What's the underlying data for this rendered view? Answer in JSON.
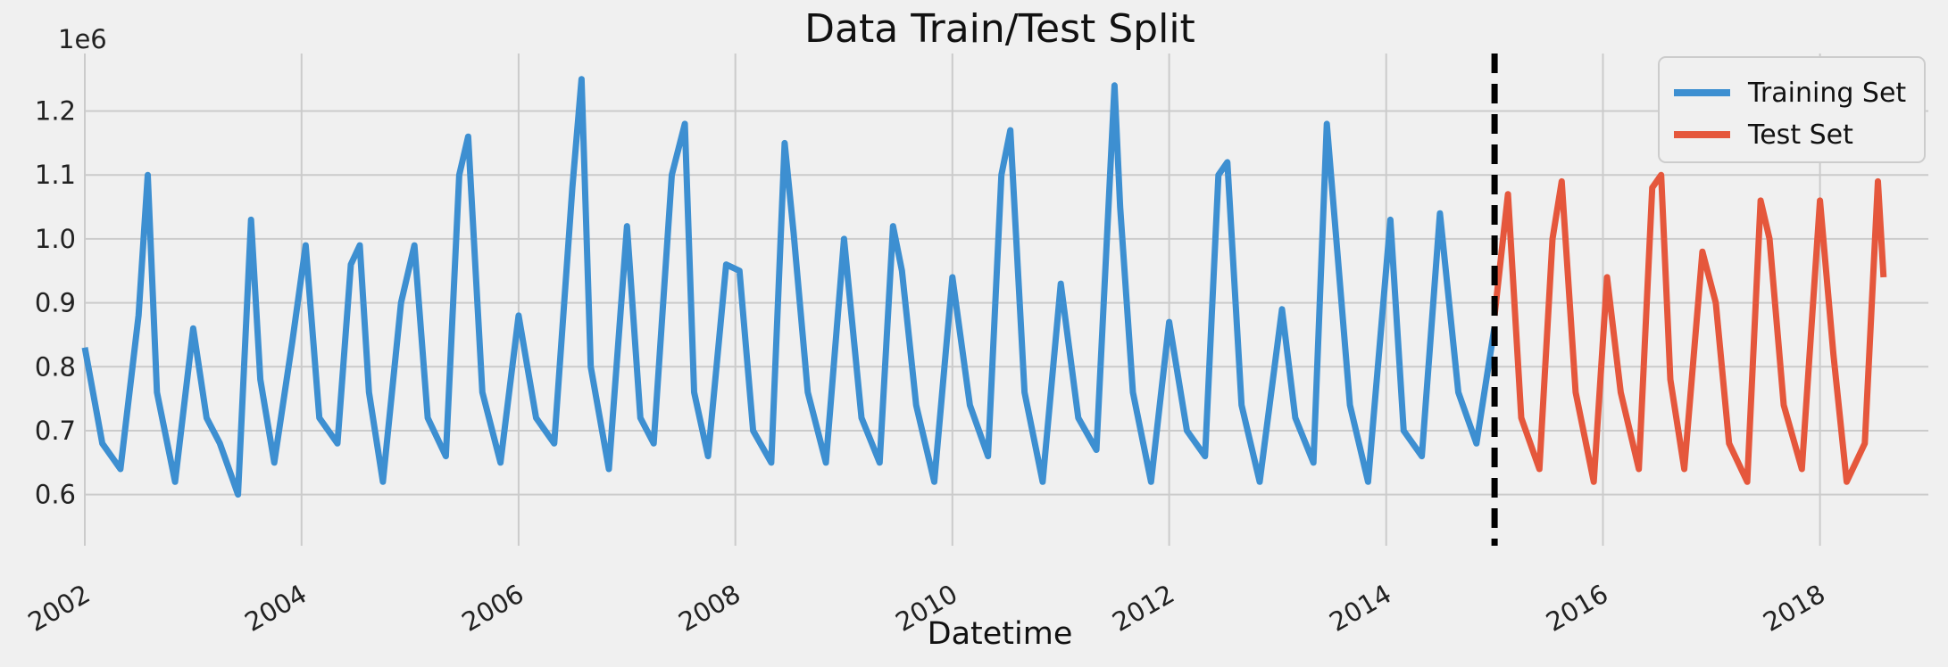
{
  "chart_data": {
    "type": "line",
    "title": "Data Train/Test Split",
    "xlabel": "Datetime",
    "ylabel": "",
    "y_multiplier": "1e6",
    "xlim": [
      "2002-01-01",
      "2019-01-01"
    ],
    "ylim": [
      520000,
      1290000
    ],
    "x_ticks": [
      "2002",
      "2004",
      "2006",
      "2008",
      "2010",
      "2012",
      "2014",
      "2016",
      "2018"
    ],
    "y_ticks": [
      {
        "value": 600000,
        "label": "0.6"
      },
      {
        "value": 700000,
        "label": "0.7"
      },
      {
        "value": 800000,
        "label": "0.8"
      },
      {
        "value": 900000,
        "label": "0.9"
      },
      {
        "value": 1000000,
        "label": "1.0"
      },
      {
        "value": 1100000,
        "label": "1.1"
      },
      {
        "value": 1200000,
        "label": "1.2"
      }
    ],
    "grid": true,
    "legend_position": "top-right",
    "split_date": "2015-01-01",
    "series": [
      {
        "name": "Training Set",
        "color": "#3d8fd1",
        "x": [
          "2002-01-01",
          "2002-03-01",
          "2002-05-01",
          "2002-07-01",
          "2002-08-01",
          "2002-09-01",
          "2002-11-01",
          "2003-01-01",
          "2003-02-15",
          "2003-04-01",
          "2003-06-01",
          "2003-07-15",
          "2003-08-15",
          "2003-10-01",
          "2003-12-01",
          "2004-01-15",
          "2004-03-01",
          "2004-05-01",
          "2004-06-15",
          "2004-07-15",
          "2004-08-15",
          "2004-10-01",
          "2004-12-01",
          "2005-01-15",
          "2005-03-01",
          "2005-05-01",
          "2005-06-15",
          "2005-07-15",
          "2005-09-01",
          "2005-11-01",
          "2006-01-01",
          "2006-03-01",
          "2006-05-01",
          "2006-07-01",
          "2006-08-01",
          "2006-09-01",
          "2006-11-01",
          "2007-01-01",
          "2007-02-15",
          "2007-04-01",
          "2007-06-01",
          "2007-07-15",
          "2007-08-15",
          "2007-10-01",
          "2007-12-01",
          "2008-01-15",
          "2008-03-01",
          "2008-05-01",
          "2008-06-15",
          "2008-07-15",
          "2008-09-01",
          "2008-11-01",
          "2009-01-01",
          "2009-03-01",
          "2009-05-01",
          "2009-06-15",
          "2009-07-15",
          "2009-09-01",
          "2009-11-01",
          "2010-01-01",
          "2010-03-01",
          "2010-05-01",
          "2010-06-15",
          "2010-07-15",
          "2010-09-01",
          "2010-11-01",
          "2011-01-01",
          "2011-03-01",
          "2011-05-01",
          "2011-07-01",
          "2011-07-20",
          "2011-09-01",
          "2011-11-01",
          "2012-01-01",
          "2012-03-01",
          "2012-05-01",
          "2012-06-15",
          "2012-07-15",
          "2012-09-01",
          "2012-11-01",
          "2013-01-15",
          "2013-03-01",
          "2013-05-01",
          "2013-06-15",
          "2013-07-15",
          "2013-09-01",
          "2013-11-01",
          "2014-01-15",
          "2014-03-01",
          "2014-05-01",
          "2014-07-01",
          "2014-09-01",
          "2014-11-01",
          "2014-12-31"
        ],
        "y": [
          830000,
          680000,
          640000,
          880000,
          1100000,
          760000,
          620000,
          860000,
          720000,
          680000,
          600000,
          1030000,
          780000,
          650000,
          840000,
          990000,
          720000,
          680000,
          960000,
          990000,
          760000,
          620000,
          900000,
          990000,
          720000,
          660000,
          1100000,
          1160000,
          760000,
          650000,
          880000,
          720000,
          680000,
          1080000,
          1250000,
          800000,
          640000,
          1020000,
          720000,
          680000,
          1100000,
          1180000,
          760000,
          660000,
          960000,
          950000,
          700000,
          650000,
          1150000,
          1010000,
          760000,
          650000,
          1000000,
          720000,
          650000,
          1020000,
          950000,
          740000,
          620000,
          940000,
          740000,
          660000,
          1100000,
          1170000,
          760000,
          620000,
          930000,
          720000,
          670000,
          1240000,
          1050000,
          760000,
          620000,
          870000,
          700000,
          660000,
          1100000,
          1120000,
          740000,
          620000,
          890000,
          720000,
          650000,
          1180000,
          1010000,
          740000,
          620000,
          1030000,
          700000,
          660000,
          1040000,
          760000,
          680000,
          860000
        ]
      },
      {
        "name": "Test Set",
        "color": "#e5573c",
        "x": [
          "2015-01-01",
          "2015-02-15",
          "2015-04-01",
          "2015-06-01",
          "2015-07-15",
          "2015-08-15",
          "2015-10-01",
          "2015-12-01",
          "2016-01-15",
          "2016-03-01",
          "2016-05-01",
          "2016-06-15",
          "2016-07-15",
          "2016-08-15",
          "2016-10-01",
          "2016-12-01",
          "2017-01-15",
          "2017-03-01",
          "2017-05-01",
          "2017-06-15",
          "2017-07-15",
          "2017-09-01",
          "2017-11-01",
          "2018-01-01",
          "2018-02-15",
          "2018-04-01",
          "2018-06-01",
          "2018-07-15",
          "2018-08-03"
        ],
        "y": [
          880000,
          1070000,
          720000,
          640000,
          1000000,
          1090000,
          760000,
          620000,
          940000,
          760000,
          640000,
          1080000,
          1100000,
          780000,
          640000,
          980000,
          900000,
          680000,
          620000,
          1060000,
          1000000,
          740000,
          640000,
          1060000,
          820000,
          620000,
          680000,
          1090000,
          940000
        ]
      }
    ]
  }
}
